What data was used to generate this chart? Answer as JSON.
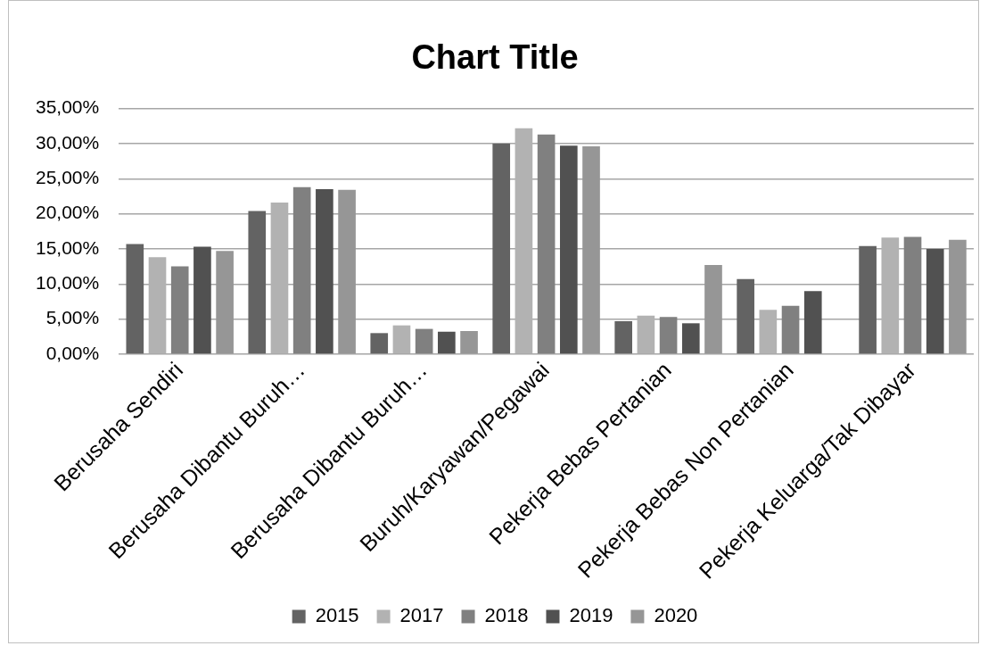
{
  "chart_data": {
    "type": "bar",
    "title": "Chart Title",
    "categories": [
      "Berusaha Sendiri",
      "Berusaha Dibantu Buruh…",
      "Berusaha Dibantu Buruh…",
      "Buruh/Karyawan/Pegawai",
      "Pekerja Bebas Pertanian",
      "Pekerja Bebas Non Pertanian",
      "Pekerja Keluarga/Tak Dibayar"
    ],
    "series": [
      {
        "name": "2015",
        "color": "#636363",
        "values": [
          15.7,
          20.4,
          3.0,
          30.0,
          4.7,
          10.7,
          15.4
        ]
      },
      {
        "name": "2017",
        "color": "#b2b2b2",
        "values": [
          13.8,
          21.6,
          4.1,
          32.2,
          5.5,
          6.3,
          16.6
        ]
      },
      {
        "name": "2018",
        "color": "#808080",
        "values": [
          12.5,
          23.8,
          3.6,
          31.3,
          5.3,
          6.9,
          16.7
        ]
      },
      {
        "name": "2019",
        "color": "#515151",
        "values": [
          15.3,
          23.5,
          3.2,
          29.7,
          4.4,
          9.0,
          15.0
        ]
      },
      {
        "name": "2020",
        "color": "#969696",
        "values": [
          14.7,
          23.4,
          3.3,
          29.6,
          12.7,
          null,
          16.3
        ]
      }
    ],
    "ylim": [
      0,
      35
    ],
    "yticks": [
      {
        "value": 0,
        "label": "0,00%"
      },
      {
        "value": 5,
        "label": "5,00%"
      },
      {
        "value": 10,
        "label": "10,00%"
      },
      {
        "value": 15,
        "label": "15,00%"
      },
      {
        "value": 20,
        "label": "20,00%"
      },
      {
        "value": 25,
        "label": "25,00%"
      },
      {
        "value": 30,
        "label": "30,00%"
      },
      {
        "value": 35,
        "label": "35,00%"
      }
    ],
    "grid": "y",
    "legend": "bottom"
  }
}
